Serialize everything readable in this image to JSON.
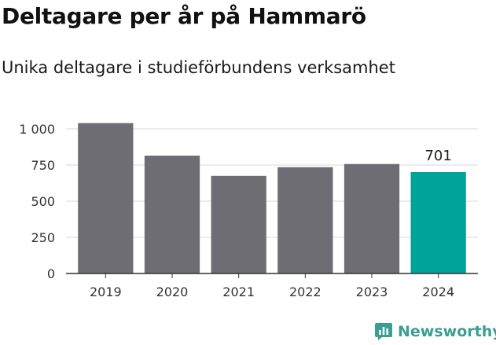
{
  "header": {
    "title": "Deltagare per år på Hammarö",
    "subtitle": "Unika deltagare i studieförbundens verksamhet"
  },
  "brand": {
    "name": "Newsworthy",
    "icon": "newsworthy-logo-icon",
    "color": "#3a9e91"
  },
  "colors": {
    "bar": "#6e6d73",
    "highlight": "#00a39a",
    "grid": "#d9d9d9",
    "axis": "#333333",
    "tick_text": "#333333"
  },
  "chart_data": {
    "type": "bar",
    "categories": [
      "2019",
      "2020",
      "2021",
      "2022",
      "2023",
      "2024"
    ],
    "values": [
      1040,
      815,
      675,
      735,
      757,
      701
    ],
    "highlight_index": 5,
    "data_labels": [
      {
        "index": 5,
        "text": "701"
      }
    ],
    "ylim": [
      0,
      1000
    ],
    "yticks": [
      0,
      250,
      500,
      750,
      1000
    ],
    "ytick_labels": [
      "0",
      "250",
      "500",
      "750",
      "1 000"
    ],
    "grid": true,
    "legend": "none"
  }
}
